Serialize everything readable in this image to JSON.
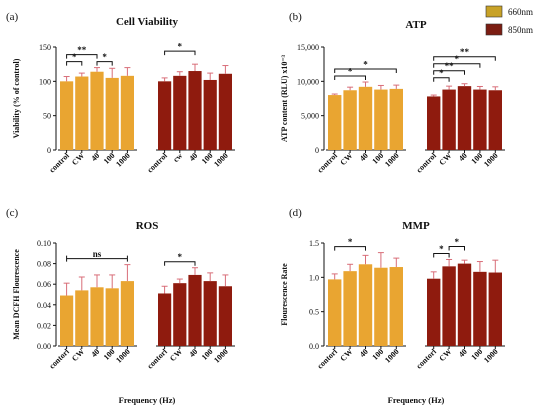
{
  "figure": {
    "legend": [
      {
        "label": "660nm",
        "color": "#c8a227"
      },
      {
        "label": "850nm",
        "color": "#7b1d12"
      }
    ],
    "colors": {
      "bar_660": "#e9a531",
      "bar_850": "#8f1b0e",
      "error": "#d86d78",
      "axis": "#111111",
      "sig": "#111111"
    }
  },
  "chart_data": [
    {
      "panel": "(a)",
      "type": "bar",
      "title": "Cell Viability",
      "ylabel": "Viability (% of control)",
      "xlabel": "",
      "ylim": [
        0,
        150
      ],
      "yticks": [
        0,
        50,
        100,
        150
      ],
      "groups": [
        {
          "name": "660nm",
          "categories": [
            "control",
            "CW",
            "40",
            "100",
            "1000"
          ],
          "values": [
            100,
            107,
            114,
            105,
            108
          ],
          "errors": [
            7,
            5,
            6,
            14,
            12
          ]
        },
        {
          "name": "850nm",
          "categories": [
            "control",
            "cw",
            "40",
            "100",
            "1000"
          ],
          "values": [
            100,
            108,
            115,
            102,
            111
          ],
          "errors": [
            5,
            6,
            10,
            10,
            12
          ]
        }
      ],
      "significance": [
        {
          "group": 0,
          "from": 0,
          "to": 1,
          "label": "*",
          "level": 0
        },
        {
          "group": 0,
          "from": 0,
          "to": 2,
          "label": "**",
          "level": 1
        },
        {
          "group": 0,
          "from": 2,
          "to": 3,
          "label": "*",
          "level": 0
        },
        {
          "group": 1,
          "from": 0,
          "to": 2,
          "label": "*",
          "level": 1
        }
      ]
    },
    {
      "panel": "(b)",
      "type": "bar",
      "title": "ATP",
      "ylabel": "ATP content (RLU) x10⁻³",
      "xlabel": "",
      "ylim": [
        0,
        15000
      ],
      "yticks": [
        0,
        5000,
        10000,
        15000
      ],
      "yticklabels": [
        "0",
        "5,000",
        "10,000",
        "15,000"
      ],
      "groups": [
        {
          "name": "660nm",
          "categories": [
            "control",
            "CW",
            "40",
            "100",
            "1000"
          ],
          "values": [
            8000,
            8700,
            9200,
            8800,
            8900
          ],
          "errors": [
            150,
            450,
            700,
            600,
            550
          ]
        },
        {
          "name": "850nm",
          "categories": [
            "control",
            "CW",
            "40",
            "100",
            "1000"
          ],
          "values": [
            7800,
            8800,
            9300,
            8800,
            8700
          ],
          "errors": [
            200,
            500,
            350,
            450,
            500
          ]
        }
      ],
      "significance": [
        {
          "group": 0,
          "from": 0,
          "to": 2,
          "label": "*",
          "level": 0
        },
        {
          "group": 0,
          "from": 0,
          "to": 4,
          "label": "*",
          "level": 1
        },
        {
          "group": 1,
          "from": 0,
          "to": 1,
          "label": "*",
          "level": 0
        },
        {
          "group": 1,
          "from": 0,
          "to": 2,
          "label": "**",
          "level": 1
        },
        {
          "group": 1,
          "from": 0,
          "to": 3,
          "label": "*",
          "level": 2
        },
        {
          "group": 1,
          "from": 0,
          "to": 4,
          "label": "**",
          "level": 3
        }
      ]
    },
    {
      "panel": "(c)",
      "type": "bar",
      "title": "ROS",
      "ylabel": "Mean DCFH Flourescence",
      "xlabel": "Frequency (Hz)",
      "ylim": [
        0,
        0.1
      ],
      "yticks": [
        0,
        0.02,
        0.04,
        0.06,
        0.08,
        0.1
      ],
      "yticklabels": [
        "0.00",
        "0.02",
        "0.04",
        "0.06",
        "0.08",
        "0.10"
      ],
      "groups": [
        {
          "name": "660nm",
          "categories": [
            "contorl",
            "CW",
            "40",
            "100",
            "1000"
          ],
          "values": [
            0.049,
            0.054,
            0.057,
            0.056,
            0.063
          ],
          "errors": [
            0.012,
            0.013,
            0.012,
            0.013,
            0.016
          ]
        },
        {
          "name": "850nm",
          "categories": [
            "contorl",
            "CW",
            "40",
            "100",
            "1000"
          ],
          "values": [
            0.051,
            0.061,
            0.069,
            0.063,
            0.058
          ],
          "errors": [
            0.007,
            0.004,
            0.007,
            0.008,
            0.011
          ]
        }
      ],
      "significance": [
        {
          "group": 0,
          "from": 0,
          "to": 4,
          "label": "ns",
          "level": 0,
          "style": "line"
        },
        {
          "group": 1,
          "from": 0,
          "to": 2,
          "label": "*",
          "level": 0
        }
      ]
    },
    {
      "panel": "(d)",
      "type": "bar",
      "title": "MMP",
      "ylabel": "Flourescence Rate",
      "xlabel": "Frequency (Hz)",
      "ylim": [
        0,
        1.5
      ],
      "yticks": [
        0,
        0.5,
        1.0,
        1.5
      ],
      "yticklabels": [
        "0.0",
        "0.5",
        "1.0",
        "1.5"
      ],
      "groups": [
        {
          "name": "660nm",
          "categories": [
            "contorl",
            "CW",
            "40",
            "100",
            "1000"
          ],
          "values": [
            0.97,
            1.09,
            1.19,
            1.14,
            1.15
          ],
          "errors": [
            0.08,
            0.1,
            0.13,
            0.22,
            0.13
          ]
        },
        {
          "name": "850nm",
          "categories": [
            "contorl",
            "CW",
            "40",
            "100",
            "1000"
          ],
          "values": [
            0.98,
            1.16,
            1.2,
            1.08,
            1.07
          ],
          "errors": [
            0.1,
            0.1,
            0.05,
            0.15,
            0.18
          ]
        }
      ],
      "significance": [
        {
          "group": 0,
          "from": 0,
          "to": 2,
          "label": "*",
          "level": 0
        },
        {
          "group": 1,
          "from": 0,
          "to": 1,
          "label": "*",
          "level": 0
        },
        {
          "group": 1,
          "from": 1,
          "to": 2,
          "label": "*",
          "level": 1
        }
      ]
    }
  ]
}
